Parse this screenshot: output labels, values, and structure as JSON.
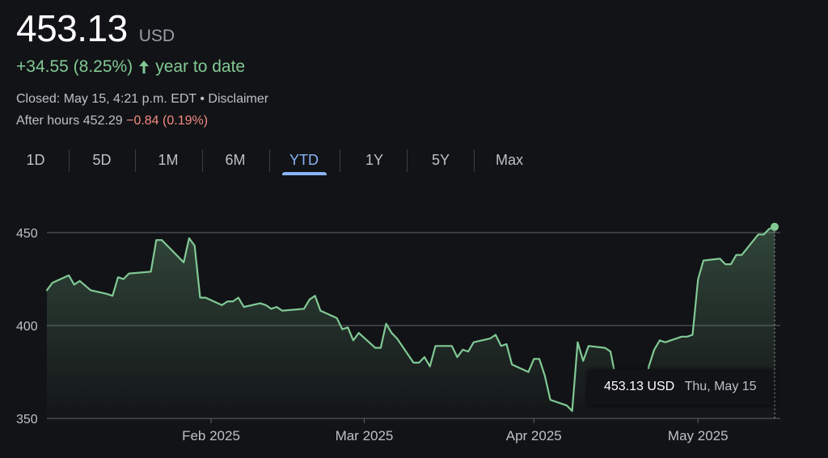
{
  "quote": {
    "price": "453.13",
    "currency": "USD",
    "change": "+34.55 (8.25%)",
    "change_period": "year to date",
    "status": "Closed: May 15, 4:21 p.m. EDT • Disclaimer",
    "after_hours_label": "After hours 452.29",
    "after_hours_change": "−0.84 (0.19%)"
  },
  "tabs": [
    {
      "label": "1D"
    },
    {
      "label": "5D"
    },
    {
      "label": "1M"
    },
    {
      "label": "6M"
    },
    {
      "label": "YTD",
      "active": true
    },
    {
      "label": "1Y"
    },
    {
      "label": "5Y"
    },
    {
      "label": "Max"
    }
  ],
  "tooltip": {
    "price": "453.13 USD",
    "date": "Thu, May 15"
  },
  "colors": {
    "line": "#81c995",
    "active_tab": "#8ab4f8",
    "negative": "#f28b82",
    "background": "#121316"
  },
  "chart_data": {
    "type": "area",
    "title": "",
    "xlabel": "",
    "ylabel": "",
    "ylim": [
      345,
      462
    ],
    "yticks": [
      350,
      400,
      450
    ],
    "xticks": [
      {
        "label": "Feb 2025",
        "date": "2025-02-01"
      },
      {
        "label": "Mar 2025",
        "date": "2025-03-01"
      },
      {
        "label": "Apr 2025",
        "date": "2025-04-01"
      },
      {
        "label": "May 2025",
        "date": "2025-05-01"
      }
    ],
    "grid": true,
    "x_range": [
      "2025-01-02",
      "2025-05-15"
    ],
    "series": [
      {
        "points": [
          [
            "2025-01-02",
            419
          ],
          [
            "2025-01-03",
            423
          ],
          [
            "2025-01-06",
            427
          ],
          [
            "2025-01-07",
            422
          ],
          [
            "2025-01-08",
            424
          ],
          [
            "2025-01-10",
            419
          ],
          [
            "2025-01-13",
            417
          ],
          [
            "2025-01-14",
            416
          ],
          [
            "2025-01-15",
            426
          ],
          [
            "2025-01-16",
            425
          ],
          [
            "2025-01-17",
            428
          ],
          [
            "2025-01-21",
            429
          ],
          [
            "2025-01-22",
            446
          ],
          [
            "2025-01-23",
            446
          ],
          [
            "2025-01-24",
            443
          ],
          [
            "2025-01-27",
            434
          ],
          [
            "2025-01-28",
            447
          ],
          [
            "2025-01-29",
            443
          ],
          [
            "2025-01-30",
            415
          ],
          [
            "2025-01-31",
            415
          ],
          [
            "2025-02-03",
            411
          ],
          [
            "2025-02-04",
            413
          ],
          [
            "2025-02-05",
            413
          ],
          [
            "2025-02-06",
            415
          ],
          [
            "2025-02-07",
            410
          ],
          [
            "2025-02-10",
            412
          ],
          [
            "2025-02-11",
            411
          ],
          [
            "2025-02-12",
            409
          ],
          [
            "2025-02-13",
            410
          ],
          [
            "2025-02-14",
            408
          ],
          [
            "2025-02-18",
            409
          ],
          [
            "2025-02-19",
            414
          ],
          [
            "2025-02-20",
            416
          ],
          [
            "2025-02-21",
            408
          ],
          [
            "2025-02-24",
            404
          ],
          [
            "2025-02-25",
            398
          ],
          [
            "2025-02-26",
            399
          ],
          [
            "2025-02-27",
            392
          ],
          [
            "2025-02-28",
            396
          ],
          [
            "2025-03-03",
            388
          ],
          [
            "2025-03-04",
            388
          ],
          [
            "2025-03-05",
            401
          ],
          [
            "2025-03-06",
            396
          ],
          [
            "2025-03-07",
            393
          ],
          [
            "2025-03-10",
            380
          ],
          [
            "2025-03-11",
            380
          ],
          [
            "2025-03-12",
            383
          ],
          [
            "2025-03-13",
            378
          ],
          [
            "2025-03-14",
            389
          ],
          [
            "2025-03-17",
            389
          ],
          [
            "2025-03-18",
            383
          ],
          [
            "2025-03-19",
            387
          ],
          [
            "2025-03-20",
            386
          ],
          [
            "2025-03-21",
            391
          ],
          [
            "2025-03-24",
            393
          ],
          [
            "2025-03-25",
            395
          ],
          [
            "2025-03-26",
            389
          ],
          [
            "2025-03-27",
            390
          ],
          [
            "2025-03-28",
            379
          ],
          [
            "2025-03-31",
            375
          ],
          [
            "2025-04-01",
            382
          ],
          [
            "2025-04-02",
            382
          ],
          [
            "2025-04-03",
            373
          ],
          [
            "2025-04-04",
            360
          ],
          [
            "2025-04-07",
            357
          ],
          [
            "2025-04-08",
            354
          ],
          [
            "2025-04-09",
            391
          ],
          [
            "2025-04-10",
            381
          ],
          [
            "2025-04-11",
            389
          ],
          [
            "2025-04-14",
            388
          ],
          [
            "2025-04-15",
            386
          ],
          [
            "2025-04-16",
            371
          ],
          [
            "2025-04-17",
            368
          ],
          [
            "2025-04-21",
            361
          ],
          [
            "2025-04-22",
            378
          ],
          [
            "2025-04-23",
            387
          ],
          [
            "2025-04-24",
            392
          ],
          [
            "2025-04-25",
            391
          ],
          [
            "2025-04-28",
            394
          ],
          [
            "2025-04-29",
            394
          ],
          [
            "2025-04-30",
            395
          ],
          [
            "2025-05-01",
            425
          ],
          [
            "2025-05-02",
            435
          ],
          [
            "2025-05-05",
            436
          ],
          [
            "2025-05-06",
            433
          ],
          [
            "2025-05-07",
            433
          ],
          [
            "2025-05-08",
            438
          ],
          [
            "2025-05-09",
            438
          ],
          [
            "2025-05-12",
            449
          ],
          [
            "2025-05-13",
            449
          ],
          [
            "2025-05-14",
            452
          ],
          [
            "2025-05-15",
            453.13
          ]
        ]
      }
    ]
  }
}
